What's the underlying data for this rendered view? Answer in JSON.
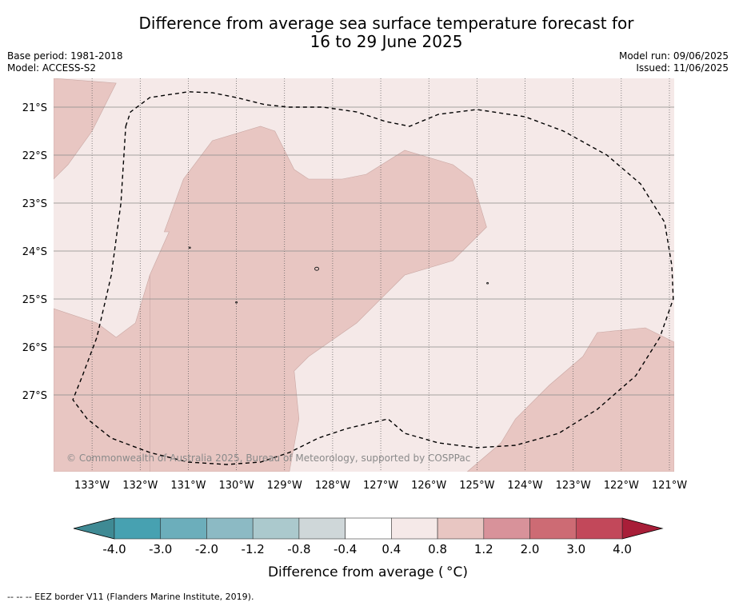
{
  "header": {
    "title_line1": "Difference from average sea surface temperature forecast for",
    "title_line2": "16 to 29 June 2025",
    "base_period": "Base period: 1981-2018",
    "model": "Model: ACCESS-S2",
    "model_run": "Model run: 09/06/2025",
    "issued": "Issued: 11/06/2025"
  },
  "map": {
    "lon_range": [
      -133.8,
      -120.9
    ],
    "lat_range": [
      -28.6,
      -20.4
    ],
    "lon_ticks": [
      {
        "value": -133,
        "label": "133°W"
      },
      {
        "value": -132,
        "label": "132°W"
      },
      {
        "value": -131,
        "label": "131°W"
      },
      {
        "value": -130,
        "label": "130°W"
      },
      {
        "value": -129,
        "label": "129°W"
      },
      {
        "value": -128,
        "label": "128°W"
      },
      {
        "value": -127,
        "label": "127°W"
      },
      {
        "value": -126,
        "label": "126°W"
      },
      {
        "value": -125,
        "label": "125°W"
      },
      {
        "value": -124,
        "label": "124°W"
      },
      {
        "value": -123,
        "label": "123°W"
      },
      {
        "value": -122,
        "label": "122°W"
      },
      {
        "value": -121,
        "label": "121°W"
      }
    ],
    "lat_ticks": [
      {
        "value": -21,
        "label": "21°S"
      },
      {
        "value": -22,
        "label": "22°S"
      },
      {
        "value": -23,
        "label": "23°S"
      },
      {
        "value": -24,
        "label": "24°S"
      },
      {
        "value": -25,
        "label": "25°S"
      },
      {
        "value": -26,
        "label": "26°S"
      },
      {
        "value": -27,
        "label": "27°S"
      }
    ],
    "background_class": "0.4 to 0.8",
    "background_color": "#f5e9e8",
    "warm_color": "#e8c6c2",
    "warm_regions": [
      [
        [
          -133.8,
          -20.4
        ],
        [
          -132.5,
          -20.5
        ],
        [
          -133.0,
          -21.5
        ],
        [
          -133.5,
          -22.2
        ],
        [
          -133.8,
          -22.5
        ]
      ],
      [
        [
          -131.5,
          -23.6
        ],
        [
          -131.1,
          -22.5
        ],
        [
          -130.5,
          -21.7
        ],
        [
          -129.5,
          -21.4
        ],
        [
          -129.2,
          -21.5
        ],
        [
          -128.8,
          -22.3
        ],
        [
          -128.5,
          -22.5
        ],
        [
          -127.8,
          -22.5
        ],
        [
          -127.3,
          -22.4
        ],
        [
          -126.5,
          -21.9
        ],
        [
          -125.5,
          -22.2
        ],
        [
          -125.1,
          -22.5
        ],
        [
          -124.8,
          -23.5
        ],
        [
          -125.5,
          -24.2
        ],
        [
          -126.5,
          -24.5
        ],
        [
          -127.5,
          -25.5
        ],
        [
          -128.5,
          -26.2
        ],
        [
          -128.8,
          -26.5
        ],
        [
          -128.7,
          -27.5
        ],
        [
          -128.9,
          -28.6
        ],
        [
          -131.8,
          -28.6
        ],
        [
          -132.0,
          -25.5
        ],
        [
          -131.8,
          -24.5
        ],
        [
          -131.4,
          -23.6
        ]
      ],
      [
        [
          -133.8,
          -25.2
        ],
        [
          -132.9,
          -25.5
        ],
        [
          -132.5,
          -25.8
        ],
        [
          -132.1,
          -25.5
        ],
        [
          -131.8,
          -24.5
        ],
        [
          -131.8,
          -28.6
        ],
        [
          -133.8,
          -28.6
        ]
      ],
      [
        [
          -125.2,
          -28.6
        ],
        [
          -124.5,
          -28.0
        ],
        [
          -124.2,
          -27.5
        ],
        [
          -123.5,
          -26.8
        ],
        [
          -122.8,
          -26.2
        ],
        [
          -122.5,
          -25.7
        ],
        [
          -121.5,
          -25.6
        ],
        [
          -120.9,
          -25.9
        ],
        [
          -120.9,
          -28.6
        ]
      ]
    ],
    "eez_border": [
      [
        -132.3,
        -21.4
      ],
      [
        -132.2,
        -21.1
      ],
      [
        -131.8,
        -20.8
      ],
      [
        -131.0,
        -20.68
      ],
      [
        -130.5,
        -20.7
      ],
      [
        -130.0,
        -20.8
      ],
      [
        -129.4,
        -20.95
      ],
      [
        -128.9,
        -21.0
      ],
      [
        -128.2,
        -21.0
      ],
      [
        -127.5,
        -21.1
      ],
      [
        -126.9,
        -21.3
      ],
      [
        -126.4,
        -21.4
      ],
      [
        -125.8,
        -21.15
      ],
      [
        -125.0,
        -21.05
      ],
      [
        -124.0,
        -21.2
      ],
      [
        -123.2,
        -21.5
      ],
      [
        -122.3,
        -22.0
      ],
      [
        -121.6,
        -22.6
      ],
      [
        -121.1,
        -23.4
      ],
      [
        -120.95,
        -24.3
      ],
      [
        -120.92,
        -25.0
      ],
      [
        -121.2,
        -25.8
      ],
      [
        -121.7,
        -26.6
      ],
      [
        -122.5,
        -27.3
      ],
      [
        -123.3,
        -27.8
      ],
      [
        -124.2,
        -28.05
      ],
      [
        -125.0,
        -28.1
      ],
      [
        -125.8,
        -28.0
      ],
      [
        -126.5,
        -27.8
      ],
      [
        -126.85,
        -27.5
      ],
      [
        -127.7,
        -27.7
      ],
      [
        -128.3,
        -27.9
      ],
      [
        -128.9,
        -28.2
      ],
      [
        -129.5,
        -28.4
      ],
      [
        -130.2,
        -28.45
      ],
      [
        -131.0,
        -28.4
      ],
      [
        -131.8,
        -28.2
      ],
      [
        -132.6,
        -27.9
      ],
      [
        -133.1,
        -27.5
      ],
      [
        -133.4,
        -27.1
      ],
      [
        -133.2,
        -26.6
      ],
      [
        -132.9,
        -25.8
      ],
      [
        -132.6,
        -24.5
      ],
      [
        -132.4,
        -23.0
      ],
      [
        -132.3,
        -21.4
      ]
    ],
    "copyright": "© Commonwealth of Australia 2025, Bureau of Meteorology, supported by COSPPac"
  },
  "colorbar": {
    "label": "Difference from average ( °C)",
    "ticks": [
      "-4.0",
      "-3.0",
      "-2.0",
      "-1.2",
      "-0.8",
      "-0.4",
      "0.4",
      "0.8",
      "1.2",
      "2.0",
      "3.0",
      "4.0"
    ],
    "low_extend_color": "#3f8a94",
    "high_extend_color": "#a81e38",
    "colors": [
      "#47a1b1",
      "#6caebb",
      "#8cbac4",
      "#abc9cd",
      "#cfd7d9",
      "#ffffff",
      "#f5e9e8",
      "#e8c6c2",
      "#d8929a",
      "#cd6b74",
      "#c2485a"
    ]
  },
  "footer": "--  --  -- EEZ border V11 (Flanders Marine Institute, 2019)."
}
